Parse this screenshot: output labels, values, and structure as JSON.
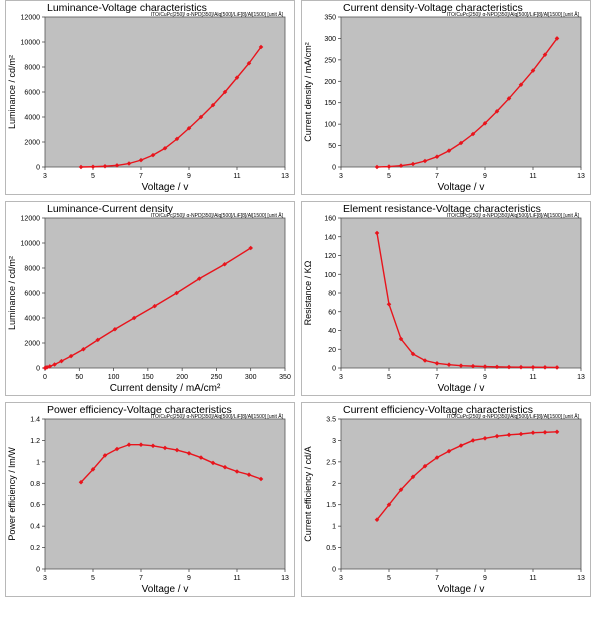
{
  "chart_data": [
    {
      "type": "line",
      "title": "Luminance-Voltage characteristics",
      "subtitle": "ITO/CuPc[250]/ α-NPD[350]/Alq[500]/LiF[8]/Al[1500]  [unit Å]",
      "xlabel": "Voltage / v",
      "ylabel": "Luminance / cd/m²",
      "xlim": [
        3,
        13
      ],
      "ylim": [
        0,
        12000
      ],
      "xticks": [
        3,
        5,
        7,
        9,
        11,
        13
      ],
      "yticks": [
        0,
        2000,
        4000,
        6000,
        8000,
        10000,
        12000
      ],
      "grid": false,
      "color": "#e8141c",
      "x": [
        4.5,
        5.0,
        5.5,
        6.0,
        6.5,
        7.0,
        7.5,
        8.0,
        8.5,
        9.0,
        9.5,
        10.0,
        10.5,
        11.0,
        11.5,
        12.0
      ],
      "y": [
        0,
        20,
        60,
        130,
        280,
        550,
        950,
        1500,
        2250,
        3100,
        4000,
        4950,
        6000,
        7150,
        8300,
        9600
      ]
    },
    {
      "type": "line",
      "title": "Current density-Voltage characteristics",
      "subtitle": "ITO/CuPc[250]/ α-NPD[350]/Alq[500]/LiF[8]/Al[1500]  [unit Å]",
      "xlabel": "Voltage / v",
      "ylabel": "Current density / mA/cm²",
      "xlim": [
        3,
        13
      ],
      "ylim": [
        0,
        350
      ],
      "xticks": [
        3,
        5,
        7,
        9,
        11,
        13
      ],
      "yticks": [
        0,
        50,
        100,
        150,
        200,
        250,
        300,
        350
      ],
      "grid": false,
      "color": "#e8141c",
      "x": [
        4.5,
        5.0,
        5.5,
        6.0,
        6.5,
        7.0,
        7.5,
        8.0,
        8.5,
        9.0,
        9.5,
        10.0,
        10.5,
        11.0,
        11.5,
        12.0
      ],
      "y": [
        0,
        1,
        3,
        7,
        14,
        24,
        38,
        56,
        77,
        102,
        130,
        160,
        192,
        225,
        262,
        300
      ]
    },
    {
      "type": "line",
      "title": "Luminance-Current density",
      "subtitle": "ITO/CuPc[250]/ α-NPD[350]/Alq[500]/LiF[8]/Al[1500]  [unit Å]",
      "xlabel": "Current density / mA/cm²",
      "ylabel": "Luminance / cd/m²",
      "xlim": [
        0,
        350
      ],
      "ylim": [
        0,
        12000
      ],
      "xticks": [
        0,
        50,
        100,
        150,
        200,
        250,
        300,
        350
      ],
      "yticks": [
        0,
        2000,
        4000,
        6000,
        8000,
        10000,
        12000
      ],
      "grid": false,
      "color": "#e8141c",
      "x": [
        0,
        1,
        3,
        7,
        14,
        24,
        38,
        56,
        77,
        102,
        130,
        160,
        192,
        225,
        262,
        300
      ],
      "y": [
        0,
        20,
        60,
        130,
        280,
        550,
        950,
        1500,
        2250,
        3100,
        4000,
        4950,
        6000,
        7150,
        8300,
        9600
      ]
    },
    {
      "type": "line",
      "title": "Element resistance-Voltage characteristics",
      "subtitle": "ITO/CuPc[250]/ α-NPD[350]/Alq[500]/LiF[8]/Al[1500]  [unit Å]",
      "xlabel": "Voltage / v",
      "ylabel": "Resistance / KΩ",
      "xlim": [
        3,
        13
      ],
      "ylim": [
        0,
        160
      ],
      "xticks": [
        3,
        5,
        7,
        9,
        11,
        13
      ],
      "yticks": [
        0,
        20,
        40,
        60,
        80,
        100,
        120,
        140,
        160
      ],
      "grid": false,
      "color": "#e8141c",
      "x": [
        4.5,
        5.0,
        5.5,
        6.0,
        6.5,
        7.0,
        7.5,
        8.0,
        8.5,
        9.0,
        9.5,
        10.0,
        10.5,
        11.0,
        11.5,
        12.0
      ],
      "y": [
        144,
        68,
        31,
        15,
        8,
        5,
        3.5,
        2.5,
        2,
        1.5,
        1.2,
        1,
        0.9,
        0.8,
        0.7,
        0.6
      ]
    },
    {
      "type": "line",
      "title": "Power efficiency-Voltage characteristics",
      "subtitle": "ITO/CuPc[250]/ α-NPD[350]/Alq[500]/LiF[8]/Al[1500]  [unit Å]",
      "xlabel": "Voltage / v",
      "ylabel": "Power efficiency / lm/W",
      "xlim": [
        3,
        13
      ],
      "ylim": [
        0,
        1.4
      ],
      "xticks": [
        3,
        5,
        7,
        9,
        11,
        13
      ],
      "yticks": [
        0,
        0.2,
        0.4,
        0.6,
        0.8,
        1.0,
        1.2,
        1.4
      ],
      "grid": false,
      "color": "#e8141c",
      "x": [
        4.5,
        5.0,
        5.5,
        6.0,
        6.5,
        7.0,
        7.5,
        8.0,
        8.5,
        9.0,
        9.5,
        10.0,
        10.5,
        11.0,
        11.5,
        12.0
      ],
      "y": [
        0.81,
        0.93,
        1.06,
        1.12,
        1.16,
        1.16,
        1.15,
        1.13,
        1.11,
        1.08,
        1.04,
        0.99,
        0.95,
        0.91,
        0.88,
        0.84
      ]
    },
    {
      "type": "line",
      "title": "Current efficiency-Voltage characteristics",
      "subtitle": "ITO/CuPc[250]/ α-NPD[350]/Alq[500]/LiF[8]/Al[1500]  [unit Å]",
      "xlabel": "Voltage / v",
      "ylabel": "Current efficiency / cd/A",
      "xlim": [
        3,
        13
      ],
      "ylim": [
        0,
        3.5
      ],
      "xticks": [
        3,
        5,
        7,
        9,
        11,
        13
      ],
      "yticks": [
        0,
        0.5,
        1.0,
        1.5,
        2.0,
        2.5,
        3.0,
        3.5
      ],
      "grid": false,
      "color": "#e8141c",
      "x": [
        4.5,
        5.0,
        5.5,
        6.0,
        6.5,
        7.0,
        7.5,
        8.0,
        8.5,
        9.0,
        9.5,
        10.0,
        10.5,
        11.0,
        11.5,
        12.0
      ],
      "y": [
        1.15,
        1.5,
        1.85,
        2.15,
        2.4,
        2.6,
        2.75,
        2.88,
        3.0,
        3.05,
        3.1,
        3.13,
        3.15,
        3.18,
        3.19,
        3.2
      ]
    }
  ]
}
